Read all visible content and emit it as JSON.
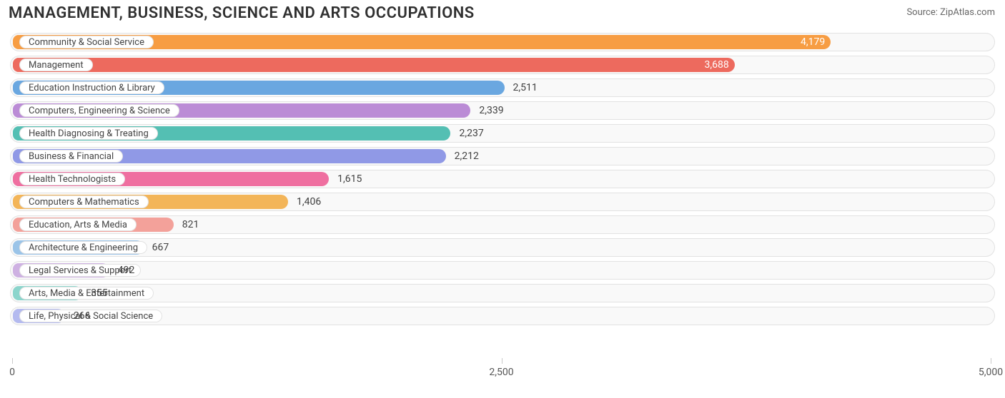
{
  "title": "MANAGEMENT, BUSINESS, SCIENCE AND ARTS OCCUPATIONS",
  "source_label": "Source:",
  "source_name": "ZipAtlas.com",
  "chart": {
    "type": "bar-horizontal",
    "xlim": [
      0,
      5000
    ],
    "xticks": [
      0,
      2500,
      5000
    ],
    "xtick_labels": [
      "0",
      "2,500",
      "5,000"
    ],
    "track_bg": "#f9f9f9",
    "track_border": "#e2e2e2",
    "pill_bg": "#ffffff",
    "pill_border": "#e2e2e2",
    "value_color": "#404040",
    "title_color": "#303030",
    "title_fontsize": 22,
    "label_fontsize": 13,
    "value_fontsize": 14,
    "categories": [
      {
        "label": "Community & Social Service",
        "value": 4179,
        "value_label": "4,179",
        "color": "#f79d43",
        "value_inside": true
      },
      {
        "label": "Management",
        "value": 3688,
        "value_label": "3,688",
        "color": "#ed6a5e",
        "value_inside": true
      },
      {
        "label": "Education Instruction & Library",
        "value": 2511,
        "value_label": "2,511",
        "color": "#6aa7e0",
        "value_inside": false
      },
      {
        "label": "Computers, Engineering & Science",
        "value": 2339,
        "value_label": "2,339",
        "color": "#bb8cd6",
        "value_inside": false
      },
      {
        "label": "Health Diagnosing & Treating",
        "value": 2237,
        "value_label": "2,237",
        "color": "#54bfb3",
        "value_inside": false
      },
      {
        "label": "Business & Financial",
        "value": 2212,
        "value_label": "2,212",
        "color": "#9099e6",
        "value_inside": false
      },
      {
        "label": "Health Technologists",
        "value": 1615,
        "value_label": "1,615",
        "color": "#ef6fa0",
        "value_inside": false
      },
      {
        "label": "Computers & Mathematics",
        "value": 1406,
        "value_label": "1,406",
        "color": "#f3b559",
        "value_inside": false
      },
      {
        "label": "Education, Arts & Media",
        "value": 821,
        "value_label": "821",
        "color": "#f3a19a",
        "value_inside": false
      },
      {
        "label": "Architecture & Engineering",
        "value": 667,
        "value_label": "667",
        "color": "#9bc4e8",
        "value_inside": false
      },
      {
        "label": "Legal Services & Support",
        "value": 492,
        "value_label": "492",
        "color": "#ceb1e2",
        "value_inside": false
      },
      {
        "label": "Arts, Media & Entertainment",
        "value": 355,
        "value_label": "355",
        "color": "#8cd5cc",
        "value_inside": false
      },
      {
        "label": "Life, Physical & Social Science",
        "value": 266,
        "value_label": "266",
        "color": "#b4baef",
        "value_inside": false
      }
    ]
  }
}
